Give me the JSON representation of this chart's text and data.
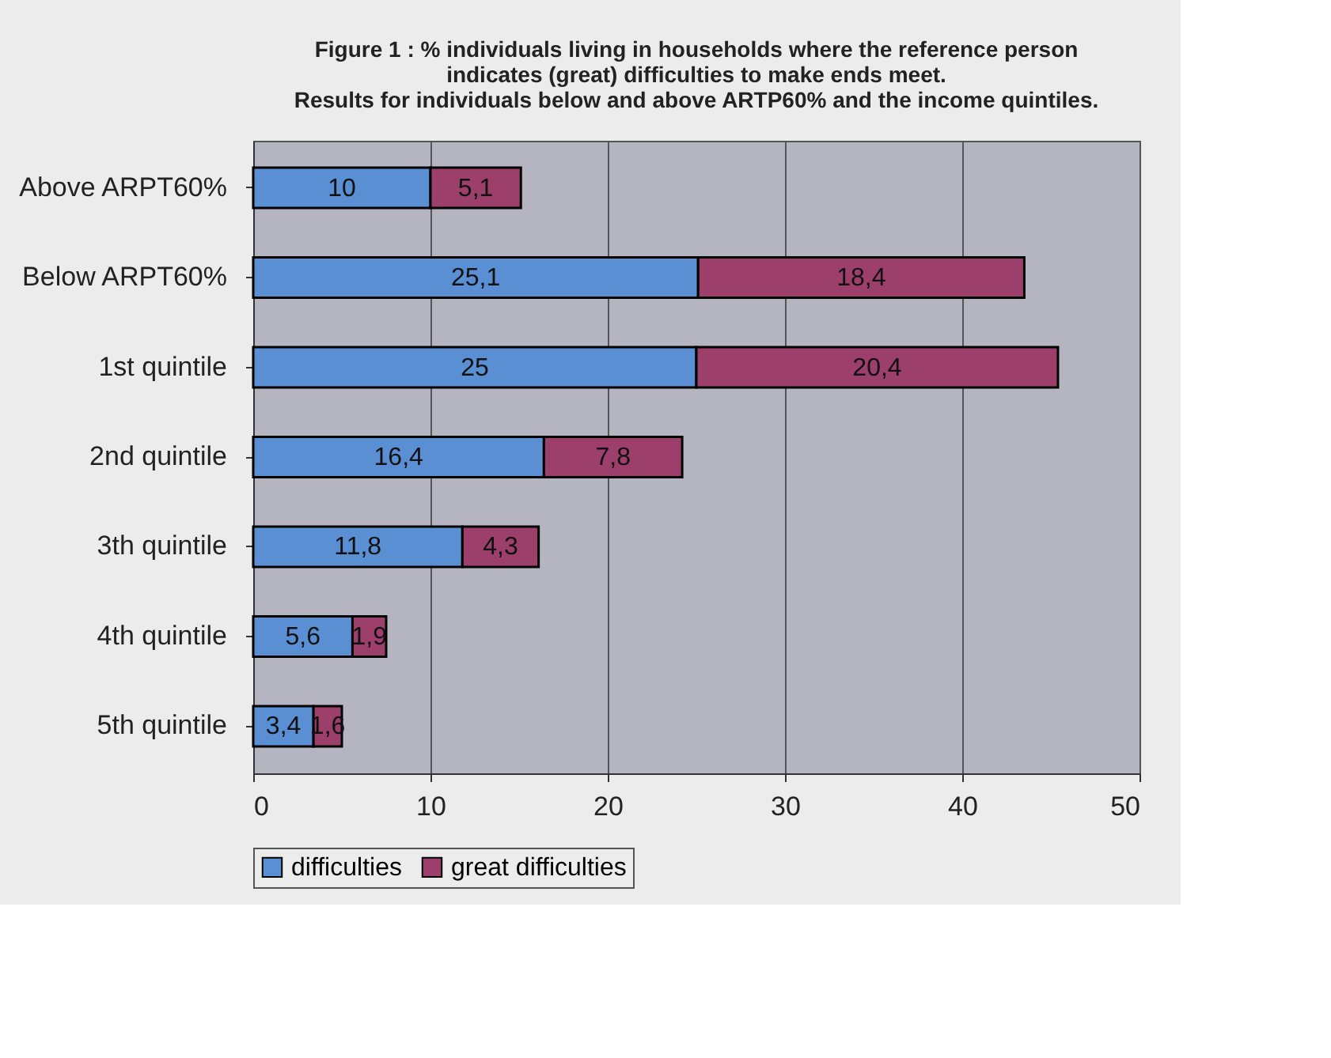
{
  "chart_data": {
    "type": "bar",
    "orientation": "horizontal",
    "stacked": true,
    "title": [
      "Figure 1 : % individuals living in households where the reference person",
      "indicates (great) difficulties to make ends meet.",
      "Results for individuals below and above ARTP60% and the income quintiles."
    ],
    "categories": [
      "Above ARPT60%",
      "Below ARPT60%",
      "1st quintile",
      "2nd quintile",
      "3th quintile",
      "4th quintile",
      "5th quintile"
    ],
    "series": [
      {
        "name": "difficulties",
        "color": "#5b8fd4",
        "values": [
          10,
          25.1,
          25,
          16.4,
          11.8,
          5.6,
          3.4
        ],
        "value_labels": [
          "10",
          "25,1",
          "25",
          "16,4",
          "11,8",
          "5,6",
          "3,4"
        ]
      },
      {
        "name": "great difficulties",
        "color": "#9c3f6b",
        "values": [
          5.1,
          18.4,
          20.4,
          7.8,
          4.3,
          1.9,
          1.6
        ],
        "value_labels": [
          "5,1",
          "18,4",
          "20,4",
          "7,8",
          "4,3",
          "1,9",
          "1,6"
        ]
      }
    ],
    "xlim": [
      0,
      50
    ],
    "xticks": [
      0,
      10,
      20,
      30,
      40,
      50
    ],
    "grid": "x",
    "legend": "bottom"
  }
}
